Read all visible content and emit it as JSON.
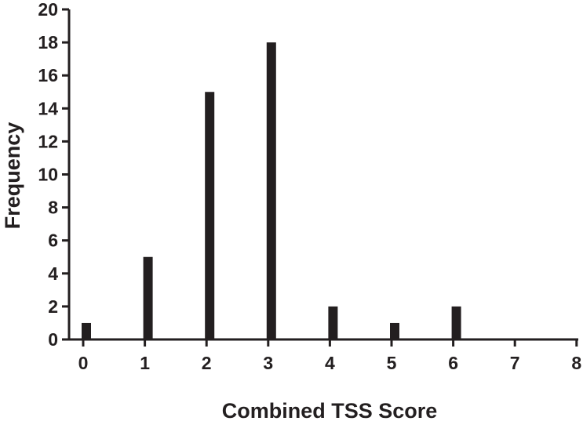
{
  "chart_data": {
    "type": "bar",
    "categories": [
      "0",
      "1",
      "2",
      "3",
      "4",
      "5",
      "6",
      "7",
      "8"
    ],
    "values": [
      1,
      5,
      15,
      18,
      2,
      1,
      2,
      0,
      0
    ],
    "title": "",
    "xlabel": "Combined TSS Score",
    "ylabel": "Frequency",
    "ylim": [
      0,
      20
    ],
    "xlim": [
      0,
      8
    ],
    "yticks": [
      "0",
      "2",
      "4",
      "6",
      "8",
      "10",
      "12",
      "14",
      "16",
      "18",
      "20"
    ],
    "xticks": [
      "0",
      "1",
      "2",
      "3",
      "4",
      "5",
      "6",
      "7",
      "8"
    ],
    "grid": false,
    "legend": "none",
    "colors": {
      "bar": "#231f20",
      "axis": "#231f20",
      "text": "#231f20",
      "background": "#ffffff"
    }
  }
}
